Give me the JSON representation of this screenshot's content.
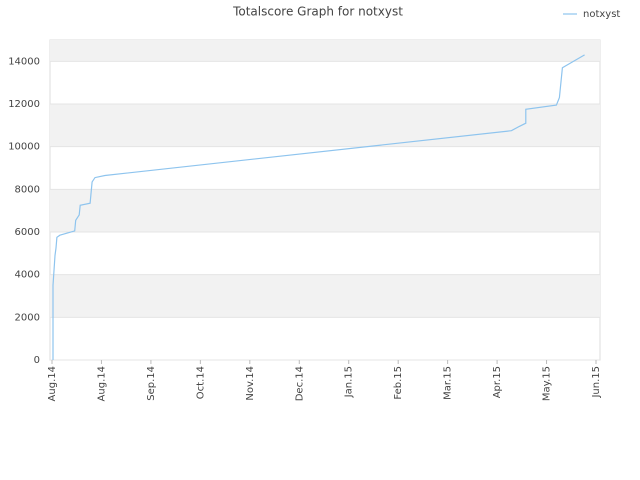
{
  "chart_data": {
    "type": "line",
    "title": "Totalscore Graph for notxyst",
    "xlim": [
      0,
      11
    ],
    "xticks": [
      {
        "value": 0,
        "label": "Aug.14"
      },
      {
        "value": 1,
        "label": "Aug.14"
      },
      {
        "value": 2,
        "label": "Sep.14"
      },
      {
        "value": 3,
        "label": "Oct.14"
      },
      {
        "value": 4,
        "label": "Nov.14"
      },
      {
        "value": 5,
        "label": "Dec.14"
      },
      {
        "value": 6,
        "label": "Jan.15"
      },
      {
        "value": 7,
        "label": "Feb.15"
      },
      {
        "value": 8,
        "label": "Mar.15"
      },
      {
        "value": 9,
        "label": "Apr.15"
      },
      {
        "value": 10,
        "label": "May.15"
      },
      {
        "value": 11,
        "label": "Jun.15"
      }
    ],
    "ylim": [
      0,
      15000
    ],
    "yticks": [
      0,
      2000,
      4000,
      6000,
      8000,
      10000,
      12000,
      14000
    ],
    "grid": true,
    "legend": "top-right",
    "x": [
      0.02,
      0.02,
      0.06,
      0.08,
      0.1,
      0.16,
      0.46,
      0.48,
      0.55,
      0.57,
      0.77,
      0.81,
      0.87,
      1.07,
      9.29,
      9.45,
      9.58,
      9.58,
      10.2,
      10.26,
      10.32,
      10.77
    ],
    "series": [
      {
        "name": "notxyst",
        "color": "#8ec4ee",
        "values": [
          0,
          3500,
          4900,
          5250,
          5750,
          5850,
          6050,
          6550,
          6800,
          7250,
          7350,
          8350,
          8550,
          8650,
          10750,
          10950,
          11100,
          11750,
          11950,
          12300,
          13700,
          14300
        ]
      }
    ]
  }
}
